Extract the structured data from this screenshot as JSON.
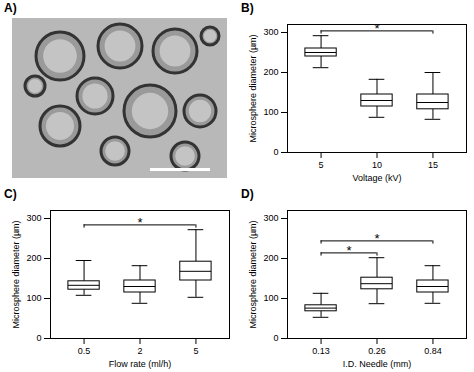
{
  "chart_data": [
    {
      "type": "image",
      "title": "A)"
    },
    {
      "type": "box",
      "title": "B)",
      "x_label": "Voltage (kV)",
      "y_label": "Microsphere diameter (µm)",
      "categories": [
        "5",
        "10",
        "15"
      ],
      "boxes": [
        {
          "min": 212,
          "q1": 240,
          "median": 250,
          "q3": 260,
          "max": 292
        },
        {
          "min": 88,
          "q1": 115,
          "median": 130,
          "q3": 145,
          "max": 183
        },
        {
          "min": 83,
          "q1": 108,
          "median": 125,
          "q3": 145,
          "max": 200
        }
      ],
      "ylim": [
        0,
        320
      ],
      "yticks": [
        0,
        100,
        200,
        300
      ],
      "annotations": [
        {
          "between": [
            "5",
            "15"
          ],
          "label": "*"
        }
      ]
    },
    {
      "type": "box",
      "title": "C)",
      "x_label": "Flow rate (ml/h)",
      "y_label": "Microsphere diameter (µm)",
      "categories": [
        "0.5",
        "2",
        "5"
      ],
      "boxes": [
        {
          "min": 108,
          "q1": 122,
          "median": 133,
          "q3": 143,
          "max": 195
        },
        {
          "min": 88,
          "q1": 115,
          "median": 130,
          "q3": 145,
          "max": 182
        },
        {
          "min": 103,
          "q1": 145,
          "median": 168,
          "q3": 192,
          "max": 272
        }
      ],
      "ylim": [
        0,
        320
      ],
      "yticks": [
        0,
        100,
        200,
        300
      ],
      "annotations": [
        {
          "between": [
            "0.5",
            "5"
          ],
          "label": "*"
        }
      ]
    },
    {
      "type": "box",
      "title": "D)",
      "x_label": "I.D. Needle (mm)",
      "y_label": "Microsphere diameter (µm)",
      "categories": [
        "0.13",
        "0.26",
        "0.84"
      ],
      "boxes": [
        {
          "min": 53,
          "q1": 68,
          "median": 76,
          "q3": 83,
          "max": 113
        },
        {
          "min": 87,
          "q1": 123,
          "median": 137,
          "q3": 152,
          "max": 202
        },
        {
          "min": 88,
          "q1": 115,
          "median": 130,
          "q3": 145,
          "max": 182
        }
      ],
      "ylim": [
        0,
        320
      ],
      "yticks": [
        0,
        100,
        200,
        300
      ],
      "annotations": [
        {
          "between": [
            "0.13",
            "0.26"
          ],
          "label": "*"
        },
        {
          "between": [
            "0.13",
            "0.84"
          ],
          "label": "*"
        }
      ]
    }
  ]
}
